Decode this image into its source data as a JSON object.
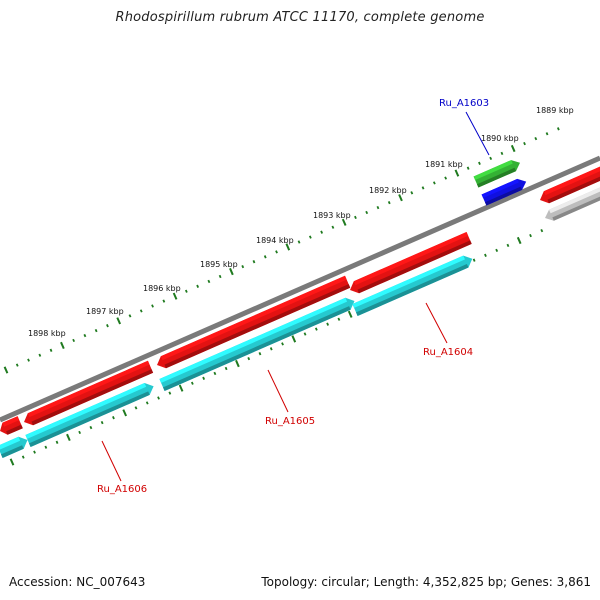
{
  "title": "Rhodospirillum rubrum ATCC 11170, complete genome",
  "footer": {
    "accession": "Accession: NC_007643",
    "summary": "Topology: circular; Length: 4,352,825 bp; Genes: 3,861"
  },
  "colors": {
    "backbone": "#7a7a7a",
    "ticks": "#1f7a1f",
    "forward_cds": "#e31212",
    "reverse_cds": "#26c9cf",
    "green_feature": "#34b134",
    "blue_feature": "#1010e0",
    "grey_feature": "#bdbdbd",
    "red_label": "#d10000",
    "blue_label": "#0000c8"
  },
  "kbp_labels": [
    "1889 kbp",
    "1890 kbp",
    "1891 kbp",
    "1892 kbp",
    "1893 kbp",
    "1894 kbp",
    "1895 kbp",
    "1896 kbp",
    "1897 kbp",
    "1898 kbp"
  ],
  "gene_labels": [
    "Ru_A1603",
    "Ru_A1604",
    "Ru_A1605",
    "Ru_A1606"
  ]
}
